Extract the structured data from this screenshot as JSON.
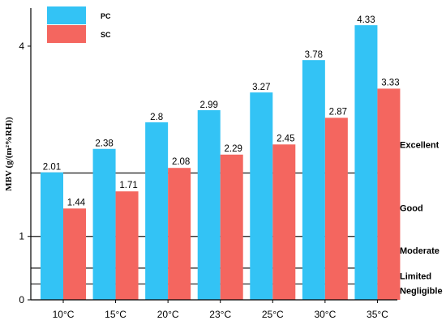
{
  "chart_data": {
    "type": "bar",
    "ylabel": "MBV (g/(m²%RH))",
    "ylim": [
      0,
      4.6
    ],
    "y_ticks": [
      "0",
      "1",
      "4"
    ],
    "y_tick_values": [
      0,
      1,
      4
    ],
    "categories": [
      "10°C",
      "15°C",
      "20°C",
      "23°C",
      "25°C",
      "30°C",
      "35°C"
    ],
    "series": [
      {
        "name": "PC",
        "color": "#33c3f5",
        "values": [
          2.01,
          2.38,
          2.8,
          2.99,
          3.27,
          3.78,
          4.33
        ],
        "labels": [
          "2.01",
          "2.38",
          "2.8",
          "2.99",
          "3.27",
          "3.78",
          "4.33"
        ]
      },
      {
        "name": "SC",
        "color": "#f4665f",
        "values": [
          1.44,
          1.71,
          2.08,
          2.29,
          2.45,
          2.87,
          3.33
        ],
        "labels": [
          "1.44",
          "1.71",
          "2.08",
          "2.29",
          "2.45",
          "2.87",
          "3.33"
        ]
      }
    ],
    "thresholds": [
      {
        "value": 0.25,
        "label": "Negligible",
        "label_value": 0.15
      },
      {
        "value": 0.5,
        "label": "Limited",
        "label_value": 0.38
      },
      {
        "value": 1.0,
        "label": "Moderate",
        "label_value": 0.78
      },
      {
        "value": 2.0,
        "label": "Good",
        "label_value": 1.45
      },
      {
        "value": null,
        "label": "Excellent",
        "label_value": 2.45
      }
    ],
    "legend": {
      "placement": "top-left"
    },
    "grid": false
  }
}
